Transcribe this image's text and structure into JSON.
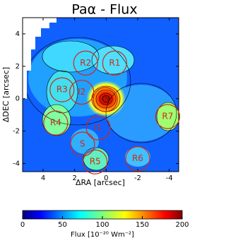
{
  "chart_data": {
    "type": "map",
    "title": "Paα - Flux",
    "xlabel": "ΔRA [arcsec]",
    "ylabel": "ΔDEC [arcsec]",
    "xlim": [
      5.3,
      -4.6
    ],
    "xticks": [
      4,
      2,
      0,
      -2,
      -4
    ],
    "ylim": [
      -4.5,
      5
    ],
    "yticks": [
      -4,
      -2,
      0,
      2,
      4
    ],
    "region_color": "#d02818",
    "regions": [
      {
        "label": "R1",
        "x": -0.54,
        "y": 2.2
      },
      {
        "label": "R2",
        "x": 1.3,
        "y": 2.2
      },
      {
        "label": "R3",
        "x": 2.8,
        "y": 0.55
      },
      {
        "label": "I2",
        "x": 1.55,
        "y": 0.4
      },
      {
        "label": "N",
        "x": 0.05,
        "y": -0.05
      },
      {
        "label": "R4",
        "x": 3.2,
        "y": -1.5
      },
      {
        "label": "I1",
        "x": 0.5,
        "y": -1.8
      },
      {
        "label": "S",
        "x": 1.5,
        "y": -2.8
      },
      {
        "label": "R5",
        "x": 0.7,
        "y": -3.9
      },
      {
        "label": "R6",
        "x": -2.0,
        "y": -3.7
      },
      {
        "label": "R7",
        "x": -3.9,
        "y": -1.1
      }
    ],
    "colorbar": {
      "colormap": "jet",
      "lim": [
        0,
        200
      ],
      "ticks": [
        0,
        50,
        100,
        150,
        200
      ],
      "label": "Flux [10⁻²⁰ Wm⁻²]"
    }
  }
}
